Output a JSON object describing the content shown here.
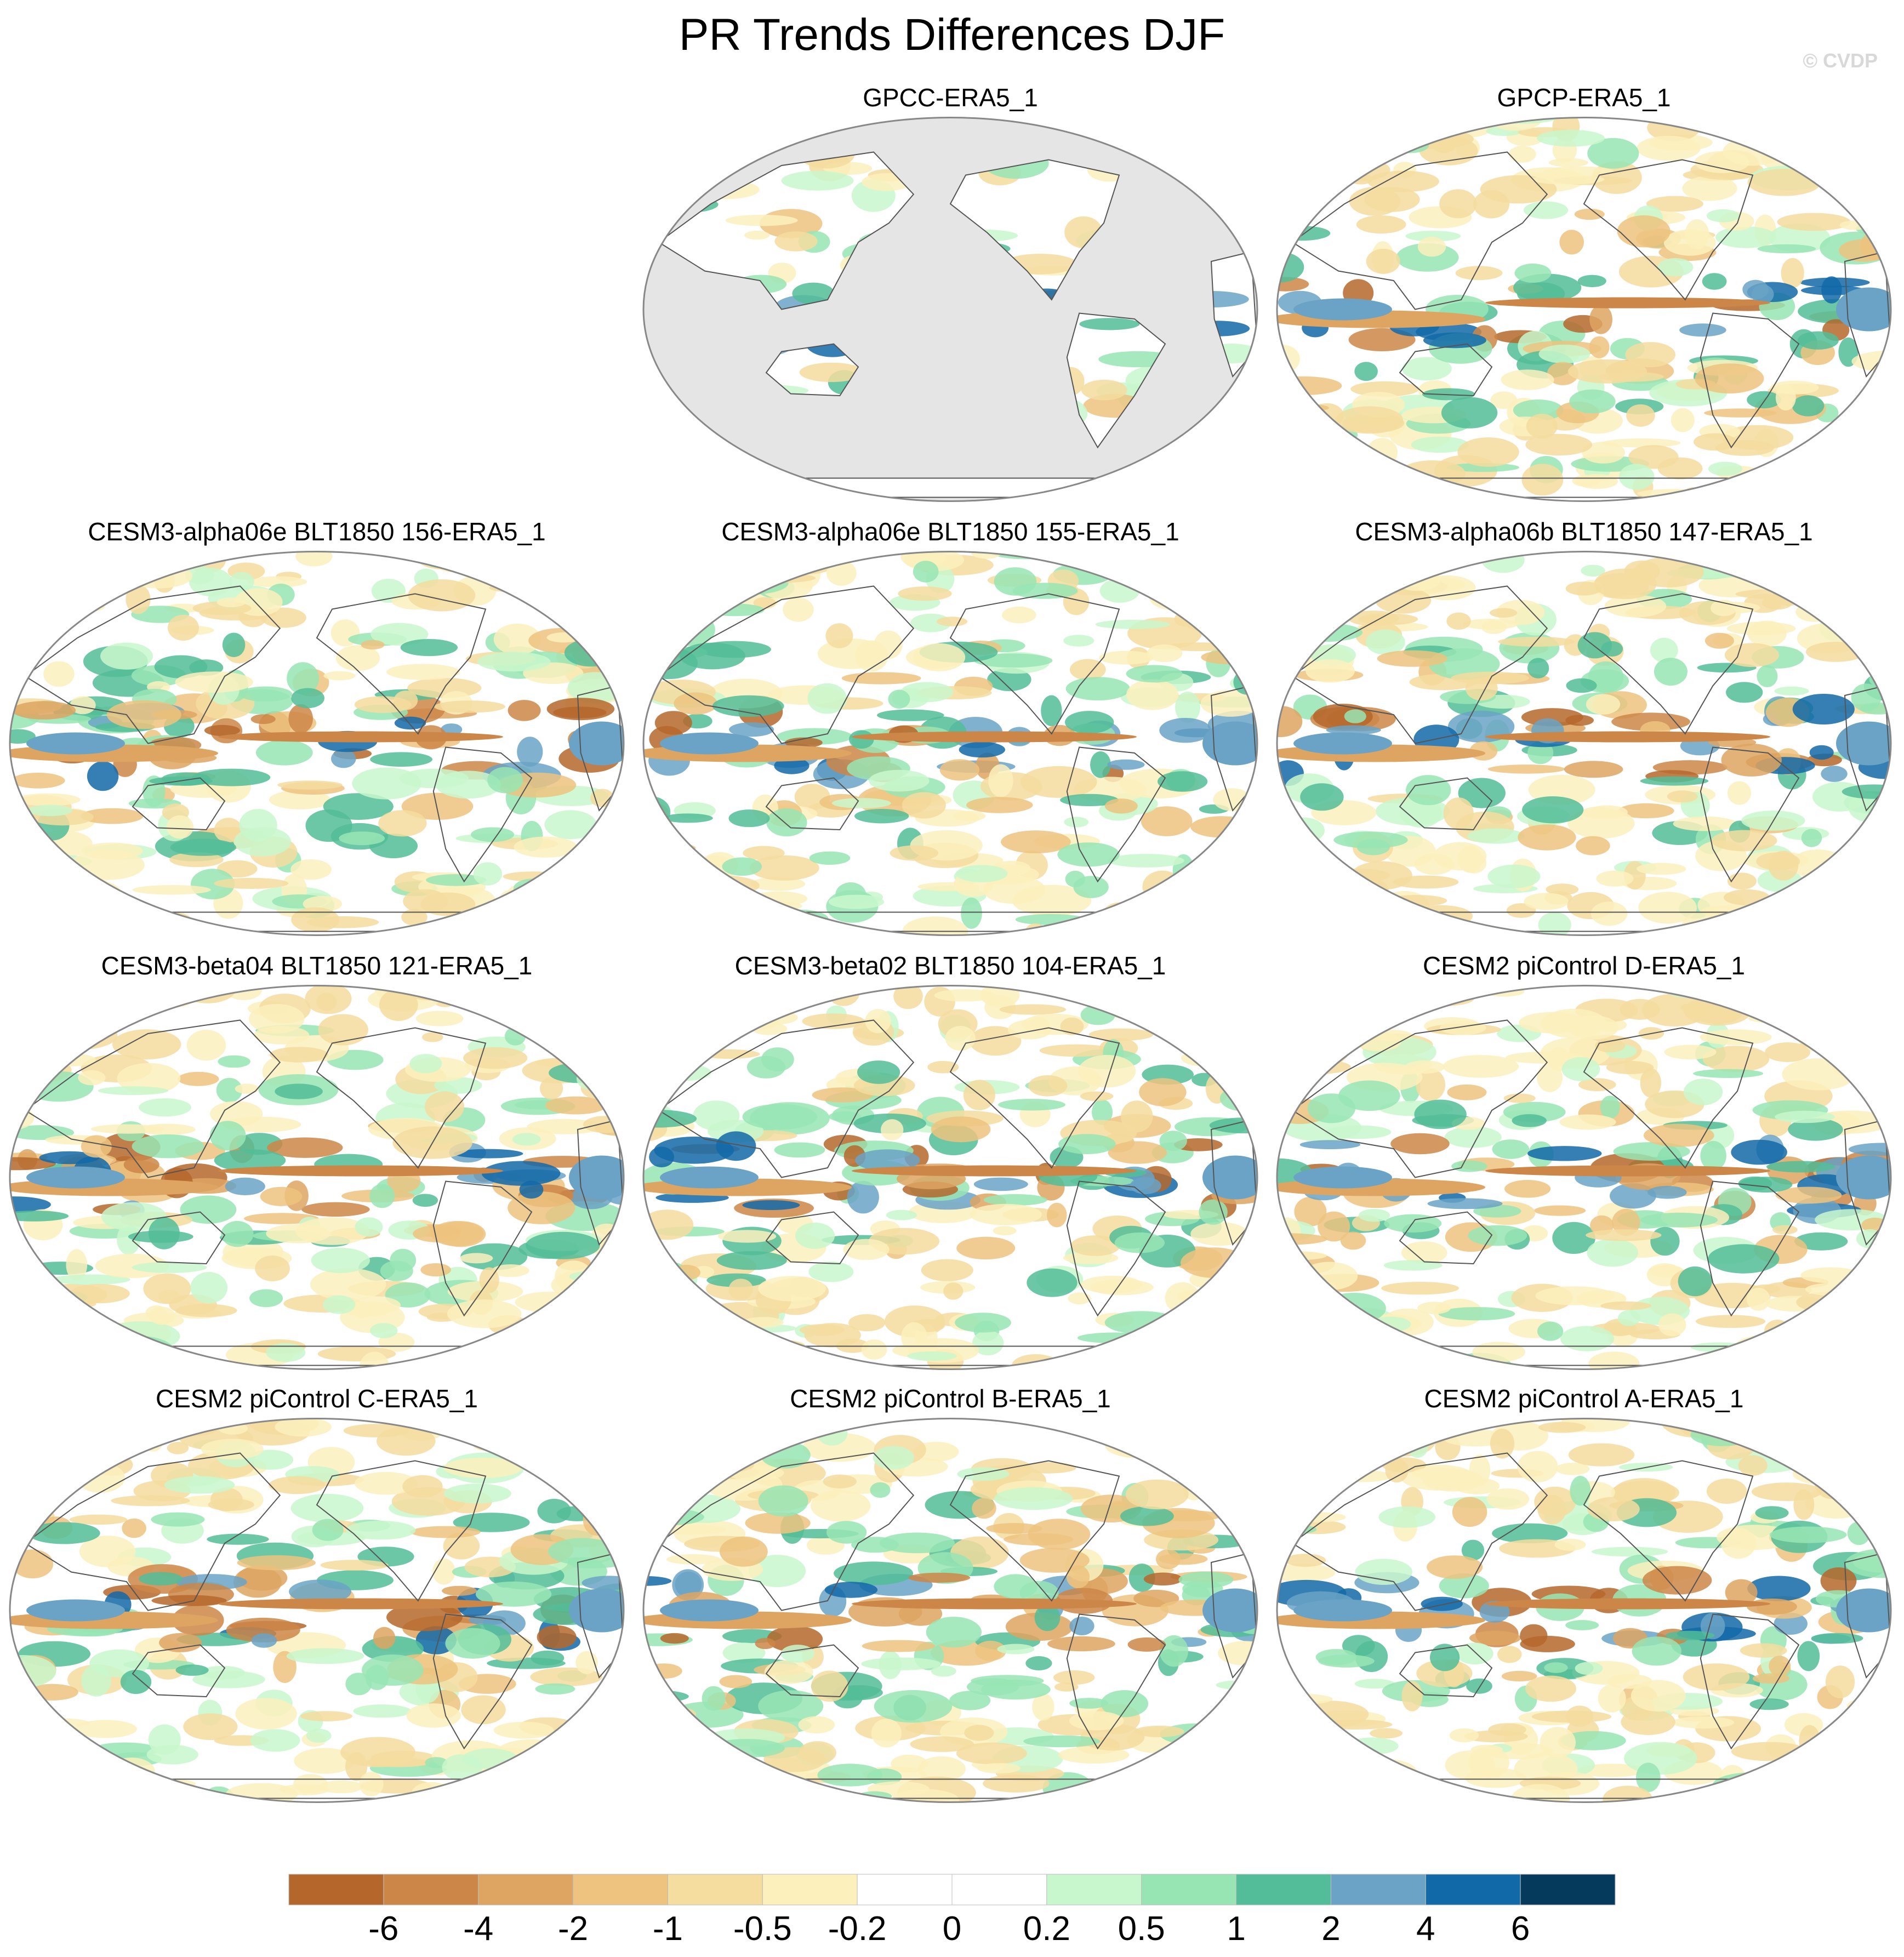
{
  "title": "PR Trends Differences DJF",
  "credit": "© CVDP",
  "panels": [
    {
      "title": "GPCC-ERA5_1",
      "row": 0,
      "col": 1,
      "land_only": true,
      "seed": 11
    },
    {
      "title": "GPCP-ERA5_1",
      "row": 0,
      "col": 2,
      "land_only": false,
      "seed": 23
    },
    {
      "title": "CESM3-alpha06e BLT1850 156-ERA5_1",
      "row": 1,
      "col": 0,
      "land_only": false,
      "seed": 37
    },
    {
      "title": "CESM3-alpha06e BLT1850 155-ERA5_1",
      "row": 1,
      "col": 1,
      "land_only": false,
      "seed": 41
    },
    {
      "title": "CESM3-alpha06b BLT1850 147-ERA5_1",
      "row": 1,
      "col": 2,
      "land_only": false,
      "seed": 53
    },
    {
      "title": "CESM3-beta04 BLT1850 121-ERA5_1",
      "row": 2,
      "col": 0,
      "land_only": false,
      "seed": 61
    },
    {
      "title": "CESM3-beta02 BLT1850 104-ERA5_1",
      "row": 2,
      "col": 1,
      "land_only": false,
      "seed": 73
    },
    {
      "title": "CESM2 piControl D-ERA5_1",
      "row": 2,
      "col": 2,
      "land_only": false,
      "seed": 89
    },
    {
      "title": "CESM2 piControl C-ERA5_1",
      "row": 3,
      "col": 0,
      "land_only": false,
      "seed": 97
    },
    {
      "title": "CESM2 piControl B-ERA5_1",
      "row": 3,
      "col": 1,
      "land_only": false,
      "seed": 103
    },
    {
      "title": "CESM2 piControl A-ERA5_1",
      "row": 3,
      "col": 2,
      "land_only": false,
      "seed": 131
    }
  ],
  "colorbar": {
    "colors": [
      "#b5672b",
      "#cc8648",
      "#dea461",
      "#edc37f",
      "#f5dc9f",
      "#fcf0bd",
      "#ffffff",
      "#ffffff",
      "#c9f7cd",
      "#98e5b4",
      "#52bd98",
      "#6aa3c5",
      "#1269a8",
      "#053a5c"
    ],
    "labels": [
      "-6",
      "-4",
      "-2",
      "-1",
      "-0.5",
      "-0.2",
      "0",
      "0.2",
      "0.5",
      "1",
      "2",
      "4",
      "6"
    ]
  },
  "colors": {
    "land_mask": "#e5e5e5",
    "coastline": "#555555",
    "map_border": "#888888"
  }
}
